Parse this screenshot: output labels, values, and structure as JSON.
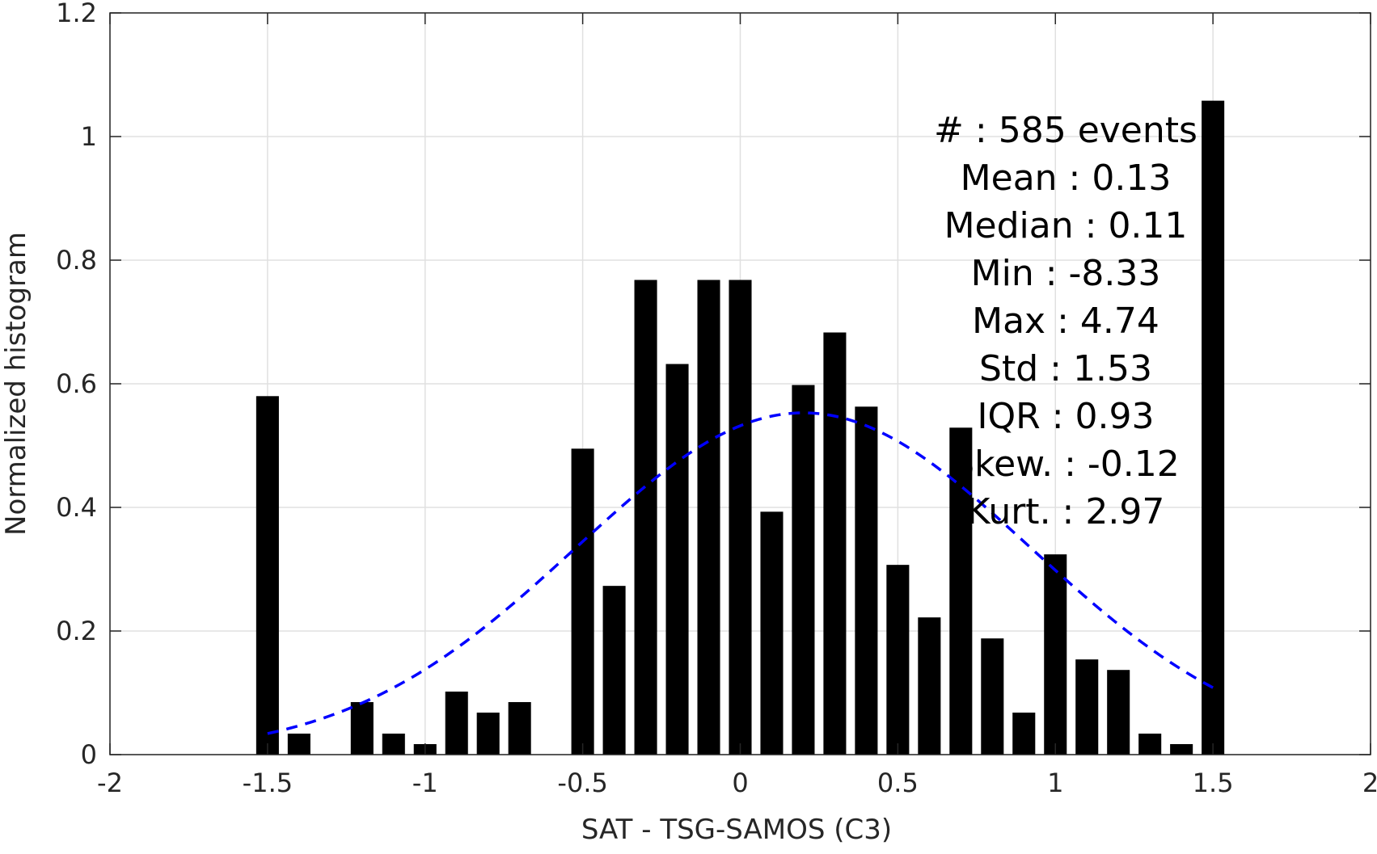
{
  "chart_data": {
    "type": "bar",
    "title": "",
    "xlabel": "SAT - TSG-SAMOS (C3)",
    "ylabel": "Normalized histogram",
    "xlim": [
      -2,
      2
    ],
    "ylim": [
      0,
      1.2
    ],
    "xticks": [
      "-2",
      "-1.5",
      "-1",
      "-0.5",
      "0",
      "0.5",
      "1",
      "1.5",
      "2"
    ],
    "yticks": [
      "0",
      "0.2",
      "0.4",
      "0.6",
      "0.8",
      "1",
      "1.2"
    ],
    "grid": true,
    "bar_color": "#000000",
    "bars": [
      {
        "x": -1.5,
        "value": 0.58
      },
      {
        "x": -1.4,
        "value": 0.034
      },
      {
        "x": -1.2,
        "value": 0.085
      },
      {
        "x": -1.1,
        "value": 0.034
      },
      {
        "x": -1.0,
        "value": 0.017
      },
      {
        "x": -0.9,
        "value": 0.102
      },
      {
        "x": -0.8,
        "value": 0.068
      },
      {
        "x": -0.7,
        "value": 0.085
      },
      {
        "x": -0.5,
        "value": 0.495
      },
      {
        "x": -0.4,
        "value": 0.273
      },
      {
        "x": -0.3,
        "value": 0.768
      },
      {
        "x": -0.2,
        "value": 0.632
      },
      {
        "x": -0.1,
        "value": 0.768
      },
      {
        "x": 0.0,
        "value": 0.768
      },
      {
        "x": 0.1,
        "value": 0.393
      },
      {
        "x": 0.2,
        "value": 0.598
      },
      {
        "x": 0.3,
        "value": 0.683
      },
      {
        "x": 0.4,
        "value": 0.563
      },
      {
        "x": 0.5,
        "value": 0.307
      },
      {
        "x": 0.6,
        "value": 0.222
      },
      {
        "x": 0.7,
        "value": 0.529
      },
      {
        "x": 0.8,
        "value": 0.188
      },
      {
        "x": 0.9,
        "value": 0.068
      },
      {
        "x": 1.0,
        "value": 0.324
      },
      {
        "x": 1.1,
        "value": 0.154
      },
      {
        "x": 1.2,
        "value": 0.137
      },
      {
        "x": 1.3,
        "value": 0.034
      },
      {
        "x": 1.4,
        "value": 0.017
      },
      {
        "x": 1.5,
        "value": 1.058
      }
    ],
    "fit_curve": {
      "style": "dashed",
      "color": "#0000ff",
      "mean": 0.2,
      "std": 0.72,
      "peak": 0.553,
      "x_range": [
        -1.5,
        1.5
      ]
    },
    "stats": [
      {
        "label": "#  ",
        "value": "585 events"
      },
      {
        "label": "Mean",
        "value": "0.13"
      },
      {
        "label": "Median",
        "value": "0.11"
      },
      {
        "label": "Min",
        "value": "-8.33"
      },
      {
        "label": "Max",
        "value": "4.74"
      },
      {
        "label": "Std",
        "value": "1.53"
      },
      {
        "label": "IQR",
        "value": "0.93"
      },
      {
        "label": "Skew.",
        "value": "-0.12"
      },
      {
        "label": "Kurt.",
        "value": "2.97"
      }
    ]
  }
}
